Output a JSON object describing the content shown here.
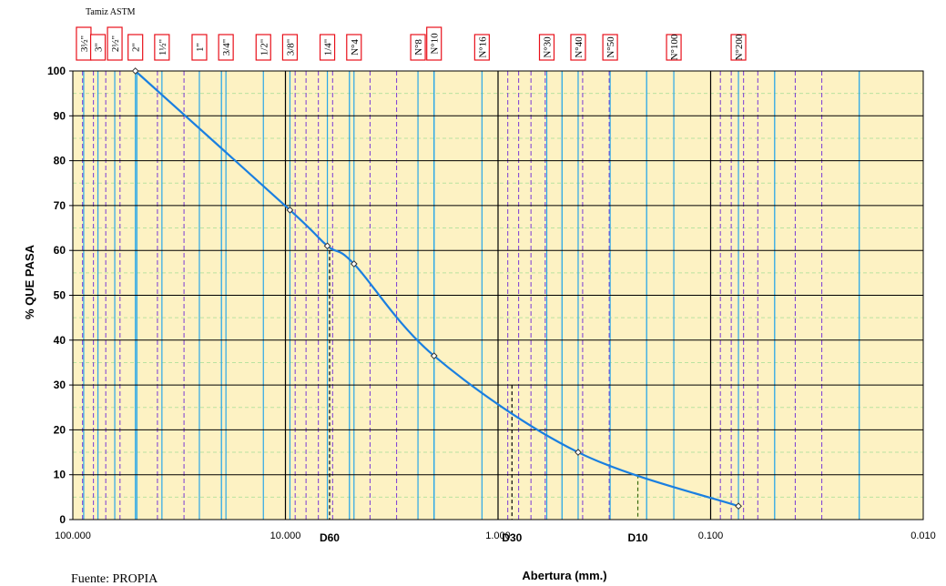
{
  "chart_data": {
    "type": "line",
    "title": "",
    "header_label": "Tamiz ASTM",
    "xlabel": "Abertura  (mm.)",
    "ylabel": "% QUE PASA",
    "x_scale": "log",
    "x_reversed": true,
    "xlim": [
      100,
      0.01
    ],
    "ylim": [
      0,
      100
    ],
    "x_ticks": [
      {
        "value": 100,
        "label": "100.000"
      },
      {
        "value": 10,
        "label": "10.000"
      },
      {
        "value": 1,
        "label": "1.000"
      },
      {
        "value": 0.1,
        "label": "0.100"
      },
      {
        "value": 0.01,
        "label": "0.010"
      }
    ],
    "y_ticks": [
      0,
      10,
      20,
      30,
      40,
      50,
      60,
      70,
      80,
      90,
      100
    ],
    "grid": true,
    "sieves": [
      {
        "label": "3½\"",
        "size": 88.9
      },
      {
        "label": "3\"",
        "size": 76.2
      },
      {
        "label": "2½\"",
        "size": 63.5
      },
      {
        "label": "2\"",
        "size": 50.8
      },
      {
        "label": "1½\"",
        "size": 38.1
      },
      {
        "label": "1\"",
        "size": 25.4
      },
      {
        "label": "3/4\"",
        "size": 19.05
      },
      {
        "label": "1/2\"",
        "size": 12.7
      },
      {
        "label": "3/8\"",
        "size": 9.525
      },
      {
        "label": "1/4\"",
        "size": 6.35
      },
      {
        "label": "N°4",
        "size": 4.76
      },
      {
        "label": "N°8",
        "size": 2.38
      },
      {
        "label": "N°10",
        "size": 2.0
      },
      {
        "label": "N°16",
        "size": 1.19
      },
      {
        "label": "N°30",
        "size": 0.59
      },
      {
        "label": "N°40",
        "size": 0.42
      },
      {
        "label": "N°50",
        "size": 0.297
      },
      {
        "label": "N°100",
        "size": 0.149
      },
      {
        "label": "N°200",
        "size": 0.074
      }
    ],
    "series": [
      {
        "x": [
          50.8,
          9.525,
          6.35,
          4.76,
          2.0,
          0.42,
          0.074
        ],
        "y": [
          100,
          69,
          61,
          57,
          36.5,
          15,
          3
        ]
      }
    ],
    "markers": [
      {
        "label": "D60",
        "x": 6.2,
        "y": 60
      },
      {
        "label": "D30",
        "x": 0.86,
        "y": 30
      },
      {
        "label": "D10",
        "x": 0.22,
        "y": 10
      }
    ],
    "footer": "Fuente: PROPIA",
    "colors": {
      "background": "#fdf2c3",
      "curve": "#1a7fe0",
      "grid_blue": "#2aa7e8",
      "grid_purple": "#7a3ad6",
      "grid_green": "#b9e2a0",
      "sieve_box": "#e8101a"
    }
  }
}
